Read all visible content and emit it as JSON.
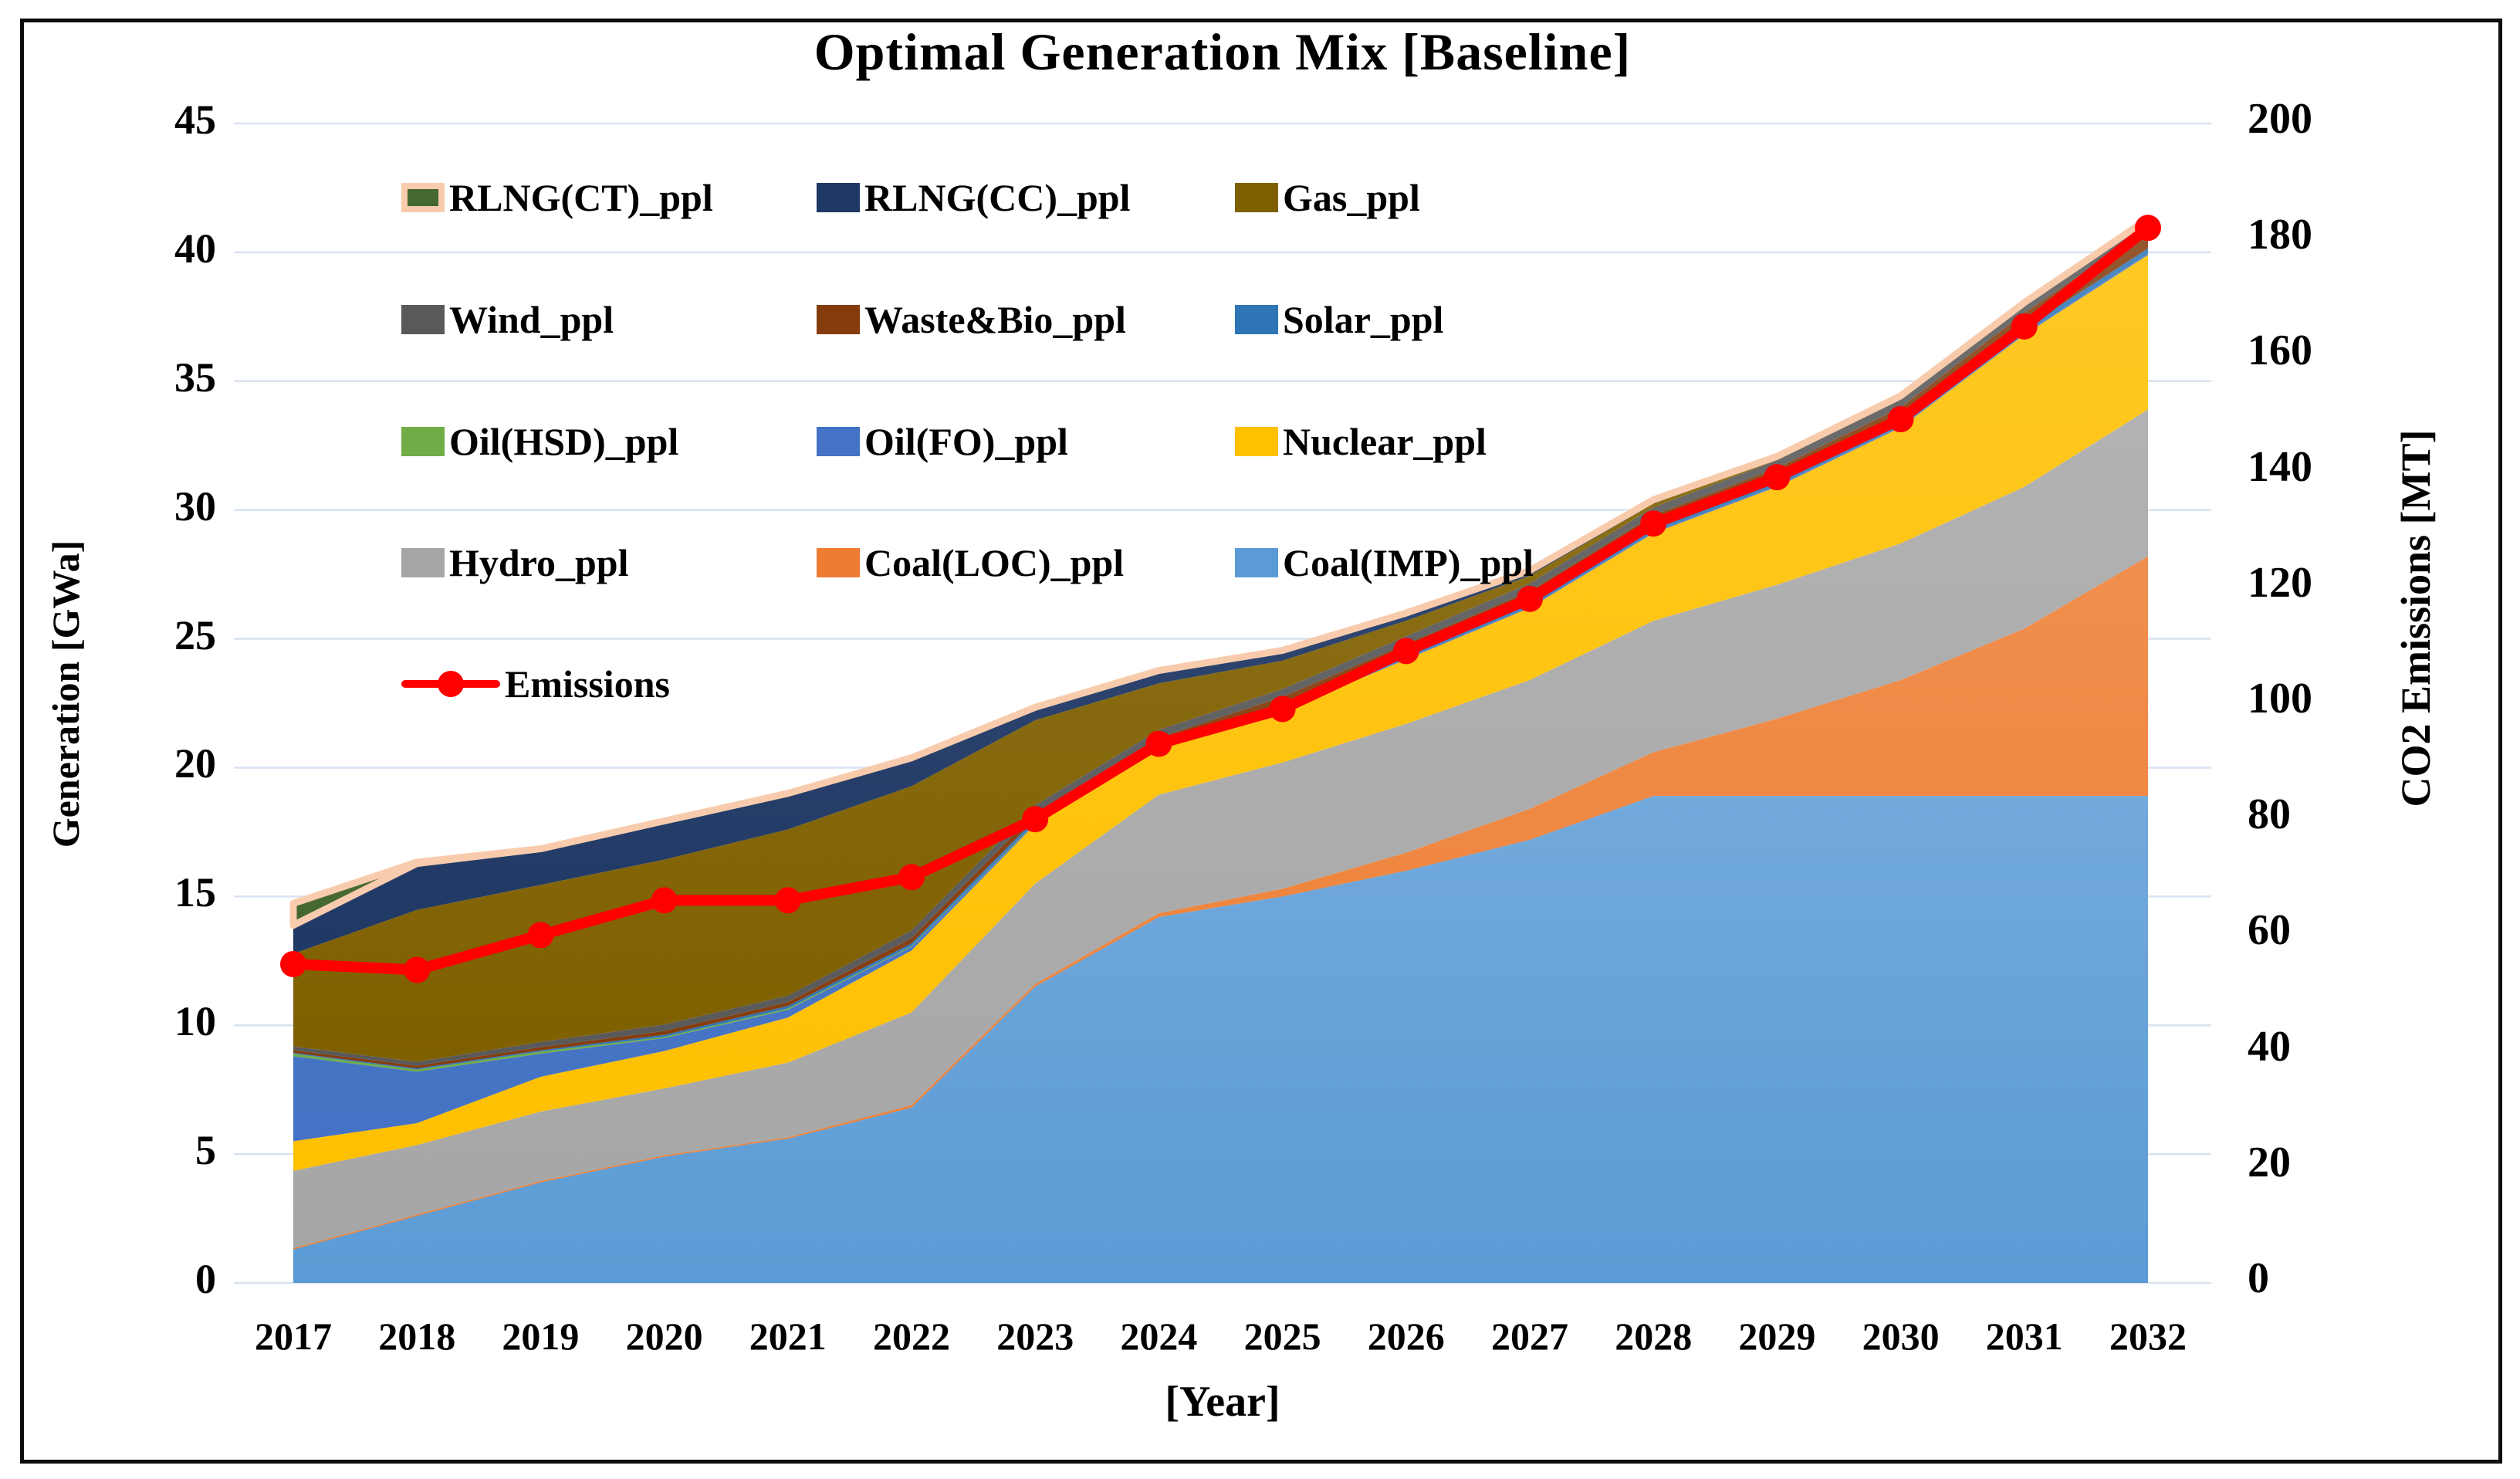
{
  "title": "Optimal Generation Mix [Baseline]",
  "axes": {
    "left_title": "Generation [GWa]",
    "right_title": "CO2 Emissions [MT]",
    "x_title": "[Year]",
    "left_ticks": [
      45,
      40,
      35,
      30,
      25,
      20,
      15,
      10,
      5,
      0
    ],
    "right_ticks": [
      200,
      180,
      160,
      140,
      120,
      100,
      80,
      60,
      40,
      20,
      0
    ],
    "left_range": [
      0,
      45
    ],
    "right_range": [
      0,
      200
    ],
    "gridlines": "horizontal, every 5 GWa, light blue-gray"
  },
  "colors": {
    "emissions": "#FF0000",
    "rlng_ct_border": "#F8CBAD",
    "gridline": "#D9E2F0",
    "axis_text": "#000000",
    "figure_border": "#0d0d0d",
    "background": "#FFFFFF"
  },
  "legend": [
    {
      "label": "RLNG(CT)_ppl",
      "series": "rlng_ct"
    },
    {
      "label": "RLNG(CC)_ppl",
      "series": "rlng_cc"
    },
    {
      "label": "Gas_ppl",
      "series": "gas"
    },
    {
      "label": "Wind_ppl",
      "series": "wind"
    },
    {
      "label": "Waste&Bio_ppl",
      "series": "waste_bio"
    },
    {
      "label": "Solar_ppl",
      "series": "solar"
    },
    {
      "label": "Oil(HSD)_ppl",
      "series": "oil_hsd"
    },
    {
      "label": "Oil(FO)_ppl",
      "series": "oil_fo"
    },
    {
      "label": "Nuclear_ppl",
      "series": "nuclear"
    },
    {
      "label": "Hydro_ppl",
      "series": "hydro"
    },
    {
      "label": "Coal(LOC)_ppl",
      "series": "coal_loc"
    },
    {
      "label": "Coal(IMP)_ppl",
      "series": "coal_imp"
    },
    {
      "label": "Emissions",
      "series": "emissions"
    }
  ],
  "chart_data": {
    "type": "area",
    "subtype": "stacked-area with secondary-axis line",
    "title": "Optimal Generation Mix [Baseline]",
    "xlabel": "[Year]",
    "ylabel_left": "Generation [GWa]",
    "ylabel_right": "CO2 Emissions [MT]",
    "ylim_left": [
      0,
      45
    ],
    "ylim_right": [
      0,
      200
    ],
    "categories": [
      2017,
      2018,
      2019,
      2020,
      2021,
      2022,
      2023,
      2024,
      2025,
      2026,
      2027,
      2028,
      2029,
      2030,
      2031,
      2032
    ],
    "series": [
      {
        "key": "coal_imp",
        "name": "Coal(IMP)_ppl",
        "color": "#5B9BD5",
        "values": [
          1.3,
          2.6,
          3.9,
          4.9,
          5.6,
          6.8,
          11.5,
          14.2,
          15.0,
          16.0,
          17.2,
          18.9,
          18.9,
          18.9,
          18.9,
          18.9
        ]
      },
      {
        "key": "coal_loc",
        "name": "Coal(LOC)_ppl",
        "color": "#ED7D31",
        "values": [
          0.05,
          0.05,
          0.05,
          0.05,
          0.05,
          0.1,
          0.1,
          0.15,
          0.3,
          0.7,
          1.2,
          1.7,
          3.0,
          4.5,
          6.5,
          9.3
        ]
      },
      {
        "key": "hydro",
        "name": "Hydro_ppl",
        "color": "#A6A6A6",
        "values": [
          3.0,
          2.7,
          2.7,
          2.6,
          2.9,
          3.6,
          3.9,
          4.6,
          4.9,
          5.0,
          5.0,
          5.1,
          5.2,
          5.3,
          5.5,
          5.7
        ]
      },
      {
        "key": "nuclear",
        "name": "Nuclear_ppl",
        "color": "#FFC000",
        "values": [
          1.15,
          0.85,
          1.35,
          1.45,
          1.75,
          2.4,
          2.3,
          1.75,
          2.0,
          2.5,
          2.8,
          3.4,
          3.8,
          4.5,
          5.9,
          6.0
        ]
      },
      {
        "key": "oil_fo",
        "name": "Oil(FO)_ppl",
        "color": "#4472C4",
        "values": [
          3.3,
          2.0,
          0.9,
          0.5,
          0.3,
          0.15,
          0.05,
          0.05,
          0.05,
          0.05,
          0.05,
          0.05,
          0.05,
          0.05,
          0.05,
          0.05
        ]
      },
      {
        "key": "oil_hsd",
        "name": "Oil(HSD)_ppl",
        "color": "#70AD47",
        "values": [
          0.1,
          0.08,
          0.08,
          0.05,
          0.05,
          0.03,
          0.02,
          0,
          0,
          0,
          0,
          0,
          0,
          0,
          0,
          0
        ]
      },
      {
        "key": "solar",
        "name": "Solar_ppl",
        "color": "#2E75B6",
        "values": [
          0.03,
          0.05,
          0.05,
          0.08,
          0.1,
          0.1,
          0.12,
          0.12,
          0.15,
          0.15,
          0.15,
          0.15,
          0.18,
          0.18,
          0.2,
          0.2
        ]
      },
      {
        "key": "waste_bio",
        "name": "Waste&Bio_ppl",
        "color": "#843C0C",
        "values": [
          0.1,
          0.1,
          0.12,
          0.15,
          0.15,
          0.2,
          0.25,
          0.3,
          0.35,
          0.4,
          0.45,
          0.5,
          0.5,
          0.55,
          0.6,
          0.75
        ]
      },
      {
        "key": "wind",
        "name": "Wind_ppl",
        "color": "#595959",
        "values": [
          0.15,
          0.15,
          0.2,
          0.25,
          0.25,
          0.3,
          0.3,
          0.3,
          0.3,
          0.3,
          0.3,
          0.3,
          0.3,
          0.3,
          0.3,
          0.3
        ]
      },
      {
        "key": "gas",
        "name": "Gas_ppl",
        "color": "#7F6000",
        "values": [
          3.6,
          5.9,
          6.1,
          6.4,
          6.45,
          5.6,
          3.3,
          1.8,
          1.1,
          0.6,
          0.3,
          0.15,
          0.05,
          0.05,
          0.05,
          0.05
        ]
      },
      {
        "key": "rlng_cc",
        "name": "RLNG(CC)_ppl",
        "color": "#1F3864",
        "values": [
          1.1,
          1.8,
          1.4,
          1.5,
          1.4,
          1.1,
          0.5,
          0.5,
          0.4,
          0.3,
          0.2,
          0.15,
          0.1,
          0.1,
          0.05,
          0.05
        ]
      },
      {
        "key": "rlng_ct",
        "name": "RLNG(CT)_ppl",
        "color": "#44682D",
        "border": "#F8CBAD",
        "values": [
          0.85,
          0.05,
          0,
          0,
          0,
          0,
          0,
          0,
          0,
          0,
          0,
          0,
          0,
          0,
          0,
          0
        ]
      }
    ],
    "line_series": {
      "key": "emissions",
      "name": "Emissions",
      "color": "#FF0000",
      "axis": "right",
      "units": "MT",
      "values": [
        55,
        54,
        60,
        66,
        66,
        70,
        80,
        93,
        99,
        109,
        118,
        131,
        139,
        149,
        165,
        182
      ]
    },
    "legend_position": "inside top-left, 3 columns"
  }
}
